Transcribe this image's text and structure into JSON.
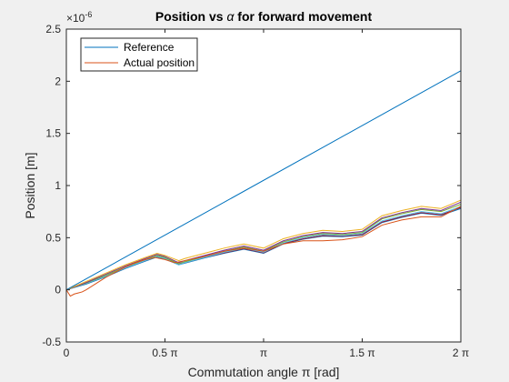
{
  "chart_data": {
    "type": "line",
    "title_prefix": "Position vs ",
    "title_symbol": "α",
    "title_suffix": " for forward movement",
    "xlabel": "Commutation angle π [rad]",
    "ylabel": "Position [m]",
    "y_exponent": "×10",
    "y_exponent_power": "-6",
    "xlim": [
      0,
      2
    ],
    "ylim": [
      -0.5,
      2.5
    ],
    "x_ticks": [
      {
        "value": 0,
        "label": "0"
      },
      {
        "value": 0.5,
        "label": "0.5 π"
      },
      {
        "value": 1,
        "label": "π"
      },
      {
        "value": 1.5,
        "label": "1.5 π"
      },
      {
        "value": 2,
        "label": "2 π"
      }
    ],
    "y_ticks": [
      {
        "value": -0.5,
        "label": "-0.5"
      },
      {
        "value": 0,
        "label": "0"
      },
      {
        "value": 0.5,
        "label": "0.5"
      },
      {
        "value": 1,
        "label": "1"
      },
      {
        "value": 1.5,
        "label": "1.5"
      },
      {
        "value": 2,
        "label": "2"
      },
      {
        "value": 2.5,
        "label": "2.5"
      }
    ],
    "legend": {
      "placement": "top-left",
      "entries": [
        {
          "name": "Reference",
          "color": "#0072BD"
        },
        {
          "name": "Actual position",
          "color": "#D95319"
        }
      ]
    },
    "series": [
      {
        "name": "Reference",
        "color": "#0072BD",
        "x": [
          0,
          2
        ],
        "y": [
          0,
          2.1
        ]
      },
      {
        "name": "Actual position",
        "color": "#D95319",
        "x": [
          0,
          0.02,
          0.04,
          0.06,
          0.08,
          0.1,
          0.15,
          0.2,
          0.25,
          0.3,
          0.35,
          0.4,
          0.45,
          0.5,
          0.55,
          0.6,
          0.7,
          0.8,
          0.9,
          1.0,
          1.1,
          1.2,
          1.3,
          1.4,
          1.5,
          1.6,
          1.7,
          1.8,
          1.9,
          2.0
        ],
        "y": [
          0,
          -0.06,
          -0.04,
          -0.03,
          -0.02,
          0.0,
          0.06,
          0.12,
          0.17,
          0.22,
          0.26,
          0.29,
          0.31,
          0.29,
          0.26,
          0.28,
          0.32,
          0.37,
          0.4,
          0.37,
          0.44,
          0.47,
          0.47,
          0.48,
          0.51,
          0.62,
          0.67,
          0.7,
          0.7,
          0.8
        ]
      },
      {
        "name": "",
        "color": "#EDB120",
        "x": [
          0,
          0.1,
          0.2,
          0.3,
          0.4,
          0.46,
          0.5,
          0.57,
          0.6,
          0.7,
          0.8,
          0.9,
          1.0,
          1.1,
          1.2,
          1.3,
          1.4,
          1.5,
          1.6,
          1.7,
          1.8,
          1.9,
          2.0
        ],
        "y": [
          0,
          0.08,
          0.16,
          0.24,
          0.31,
          0.35,
          0.33,
          0.28,
          0.3,
          0.35,
          0.4,
          0.44,
          0.4,
          0.49,
          0.54,
          0.57,
          0.56,
          0.58,
          0.71,
          0.76,
          0.8,
          0.78,
          0.86
        ]
      },
      {
        "name": "",
        "color": "#7E2F8E",
        "x": [
          0,
          0.1,
          0.2,
          0.3,
          0.4,
          0.46,
          0.5,
          0.57,
          0.6,
          0.7,
          0.8,
          0.9,
          1.0,
          1.1,
          1.2,
          1.3,
          1.4,
          1.5,
          1.6,
          1.7,
          1.8,
          1.9,
          2.0
        ],
        "y": [
          0,
          0.07,
          0.15,
          0.23,
          0.3,
          0.34,
          0.32,
          0.26,
          0.28,
          0.33,
          0.38,
          0.42,
          0.38,
          0.47,
          0.52,
          0.55,
          0.54,
          0.56,
          0.69,
          0.74,
          0.78,
          0.76,
          0.84
        ]
      },
      {
        "name": "",
        "color": "#77AC30",
        "x": [
          0,
          0.1,
          0.2,
          0.3,
          0.4,
          0.46,
          0.5,
          0.57,
          0.6,
          0.7,
          0.8,
          0.9,
          1.0,
          1.1,
          1.2,
          1.3,
          1.4,
          1.5,
          1.6,
          1.7,
          1.8,
          1.9,
          2.0
        ],
        "y": [
          0,
          0.065,
          0.14,
          0.22,
          0.29,
          0.33,
          0.31,
          0.25,
          0.27,
          0.32,
          0.37,
          0.41,
          0.37,
          0.46,
          0.51,
          0.54,
          0.53,
          0.55,
          0.68,
          0.73,
          0.77,
          0.75,
          0.82
        ]
      },
      {
        "name": "",
        "color": "#4DBEEE",
        "x": [
          0,
          0.1,
          0.2,
          0.3,
          0.4,
          0.46,
          0.5,
          0.57,
          0.6,
          0.7,
          0.8,
          0.9,
          1.0,
          1.1,
          1.2,
          1.3,
          1.4,
          1.5,
          1.6,
          1.7,
          1.8,
          1.9,
          2.0
        ],
        "y": [
          0,
          0.06,
          0.13,
          0.21,
          0.28,
          0.32,
          0.3,
          0.24,
          0.26,
          0.31,
          0.36,
          0.4,
          0.36,
          0.45,
          0.5,
          0.53,
          0.52,
          0.54,
          0.66,
          0.71,
          0.75,
          0.73,
          0.8
        ]
      },
      {
        "name": "",
        "color": "#A2142F",
        "x": [
          0,
          0.1,
          0.2,
          0.3,
          0.4,
          0.46,
          0.5,
          0.57,
          0.6,
          0.7,
          0.8,
          0.9,
          1.0,
          1.1,
          1.2,
          1.3,
          1.4,
          1.5,
          1.6,
          1.7,
          1.8,
          1.9,
          2.0
        ],
        "y": [
          0,
          0.06,
          0.13,
          0.21,
          0.28,
          0.32,
          0.3,
          0.245,
          0.26,
          0.31,
          0.355,
          0.395,
          0.355,
          0.445,
          0.49,
          0.52,
          0.515,
          0.53,
          0.65,
          0.7,
          0.74,
          0.72,
          0.79
        ]
      },
      {
        "name": "",
        "color": "#0072BD",
        "x": [
          0,
          0.1,
          0.2,
          0.3,
          0.4,
          0.46,
          0.5,
          0.57,
          0.6,
          0.7,
          0.8,
          0.9,
          1.0,
          1.1,
          1.2,
          1.3,
          1.4,
          1.5,
          1.6,
          1.7,
          1.8,
          1.9,
          2.0
        ],
        "y": [
          0,
          0.055,
          0.125,
          0.205,
          0.275,
          0.315,
          0.295,
          0.24,
          0.255,
          0.305,
          0.35,
          0.39,
          0.35,
          0.44,
          0.485,
          0.515,
          0.51,
          0.525,
          0.645,
          0.695,
          0.735,
          0.715,
          0.78
        ]
      }
    ]
  }
}
